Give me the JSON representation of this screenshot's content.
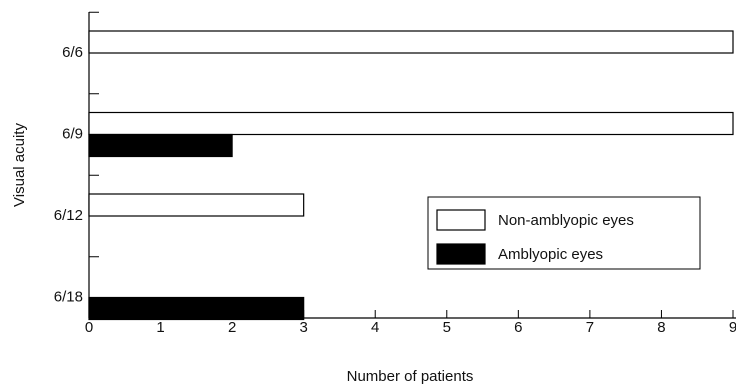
{
  "chart_data": {
    "type": "barh",
    "x_label": "Number of patients",
    "y_label": "Visual acuity",
    "categories": [
      "6/6",
      "6/9",
      "6/12",
      "6/18"
    ],
    "series": [
      {
        "name": "Non-amblyopic eyes",
        "color": "#ffffff",
        "values": [
          9,
          9,
          3,
          0
        ]
      },
      {
        "name": "Amblyopic eyes",
        "color": "#000000",
        "values": [
          0,
          2,
          0,
          3
        ]
      }
    ],
    "xlim": [
      0,
      9
    ],
    "xticks": [
      0,
      1,
      2,
      3,
      4,
      5,
      6,
      7,
      8,
      9
    ],
    "legend": "lower-right"
  }
}
